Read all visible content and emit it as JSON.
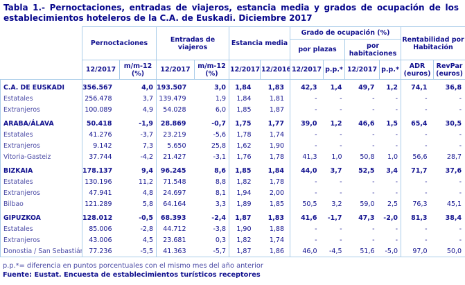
{
  "title": "Tabla 1.- Pernoctaciones, entradas de viajeros, estancia media y grados de ocupación de los establecimientos hoteleros de la C.A. de Euskadi. Diciembre 2017",
  "colors": {
    "text_dark_navy": "#12128f",
    "text_regular_navy": "#4a4aa5",
    "border_light_blue": "#a9cce9",
    "background": "#ffffff"
  },
  "table": {
    "groups": {
      "pernoctaciones": "Pernoctaciones",
      "entradas": "Entradas de viajeros",
      "estancia": "Estancia media",
      "grado": "Grado de ocupación (%)",
      "rentabilidad": "Rentabilidad por Habitación"
    },
    "subgroups": {
      "por_plazas": "por plazas",
      "por_habitaciones": "por habitaciones"
    },
    "columns": [
      "12/2017",
      "m/m-12 (%)",
      "12/2017",
      "m/m-12 (%)",
      "12/2017",
      "12/2016",
      "12/2017",
      "p.p.*",
      "12/2017",
      "p.p.*",
      "ADR (euros)",
      "RevPar (euros)"
    ],
    "rows": [
      {
        "label": "C.A. DE EUSKADI",
        "bold": true,
        "values": [
          "356.567",
          "4,0",
          "193.507",
          "3,0",
          "1,84",
          "1,83",
          "42,3",
          "1,4",
          "49,7",
          "1,2",
          "74,1",
          "36,8"
        ]
      },
      {
        "label": "Estatales",
        "bold": false,
        "values": [
          "256.478",
          "3,7",
          "139.479",
          "1,9",
          "1,84",
          "1,81",
          "-",
          "-",
          "-",
          "-",
          "-",
          "-"
        ]
      },
      {
        "label": "Extranjeros",
        "bold": false,
        "values": [
          "100.089",
          "4,9",
          "54.028",
          "6,0",
          "1,85",
          "1,87",
          "-",
          "-",
          "-",
          "-",
          "-",
          "-"
        ]
      },
      {
        "label": "ARABA/ÁLAVA",
        "bold": true,
        "values": [
          "50.418",
          "-1,9",
          "28.869",
          "-0,7",
          "1,75",
          "1,77",
          "39,0",
          "1,2",
          "46,6",
          "1,5",
          "65,4",
          "30,5"
        ]
      },
      {
        "label": "Estatales",
        "bold": false,
        "values": [
          "41.276",
          "-3,7",
          "23.219",
          "-5,6",
          "1,78",
          "1,74",
          "-",
          "-",
          "-",
          "-",
          "-",
          "-"
        ]
      },
      {
        "label": "Extranjeros",
        "bold": false,
        "values": [
          "9.142",
          "7,3",
          "5.650",
          "25,8",
          "1,62",
          "1,90",
          "-",
          "-",
          "-",
          "-",
          "-",
          "-"
        ]
      },
      {
        "label": "Vitoria-Gasteiz",
        "bold": false,
        "values": [
          "37.744",
          "-4,2",
          "21.427",
          "-3,1",
          "1,76",
          "1,78",
          "41,3",
          "1,0",
          "50,8",
          "1,0",
          "56,6",
          "28,7"
        ]
      },
      {
        "label": "BIZKAIA",
        "bold": true,
        "values": [
          "178.137",
          "9,4",
          "96.245",
          "8,6",
          "1,85",
          "1,84",
          "44,0",
          "3,7",
          "52,5",
          "3,4",
          "71,7",
          "37,6"
        ]
      },
      {
        "label": "Estatales",
        "bold": false,
        "values": [
          "130.196",
          "11,2",
          "71.548",
          "8,8",
          "1,82",
          "1,78",
          "-",
          "-",
          "-",
          "-",
          "-",
          "-"
        ]
      },
      {
        "label": "Extranjeros",
        "bold": false,
        "values": [
          "47.941",
          "4,8",
          "24.697",
          "8,1",
          "1,94",
          "2,00",
          "-",
          "-",
          "-",
          "-",
          "-",
          "-"
        ]
      },
      {
        "label": "Bilbao",
        "bold": false,
        "values": [
          "121.289",
          "5,8",
          "64.164",
          "3,3",
          "1,89",
          "1,85",
          "50,5",
          "3,2",
          "59,0",
          "2,5",
          "76,3",
          "45,1"
        ]
      },
      {
        "label": "GIPUZKOA",
        "bold": true,
        "values": [
          "128.012",
          "-0,5",
          "68.393",
          "-2,4",
          "1,87",
          "1,83",
          "41,6",
          "-1,7",
          "47,3",
          "-2,0",
          "81,3",
          "38,4"
        ]
      },
      {
        "label": "Estatales",
        "bold": false,
        "values": [
          "85.006",
          "-2,8",
          "44.712",
          "-3,8",
          "1,90",
          "1,88",
          "-",
          "-",
          "-",
          "-",
          "-",
          "-"
        ]
      },
      {
        "label": "Extranjeros",
        "bold": false,
        "values": [
          "43.006",
          "4,5",
          "23.681",
          "0,3",
          "1,82",
          "1,74",
          "-",
          "-",
          "-",
          "-",
          "-",
          "-"
        ]
      },
      {
        "label": "Donostia / San Sebastián",
        "bold": false,
        "values": [
          "77.236",
          "-5,5",
          "41.363",
          "-5,7",
          "1,87",
          "1,86",
          "46,0",
          "-4,5",
          "51,6",
          "-5,0",
          "97,0",
          "50,0"
        ]
      }
    ]
  },
  "footnotes": {
    "line1": "p.p.*= diferencia en puntos porcentuales con el mismo mes del año anterior",
    "line2": "Fuente: Eustat. Encuesta de establecimientos turísticos receptores"
  }
}
